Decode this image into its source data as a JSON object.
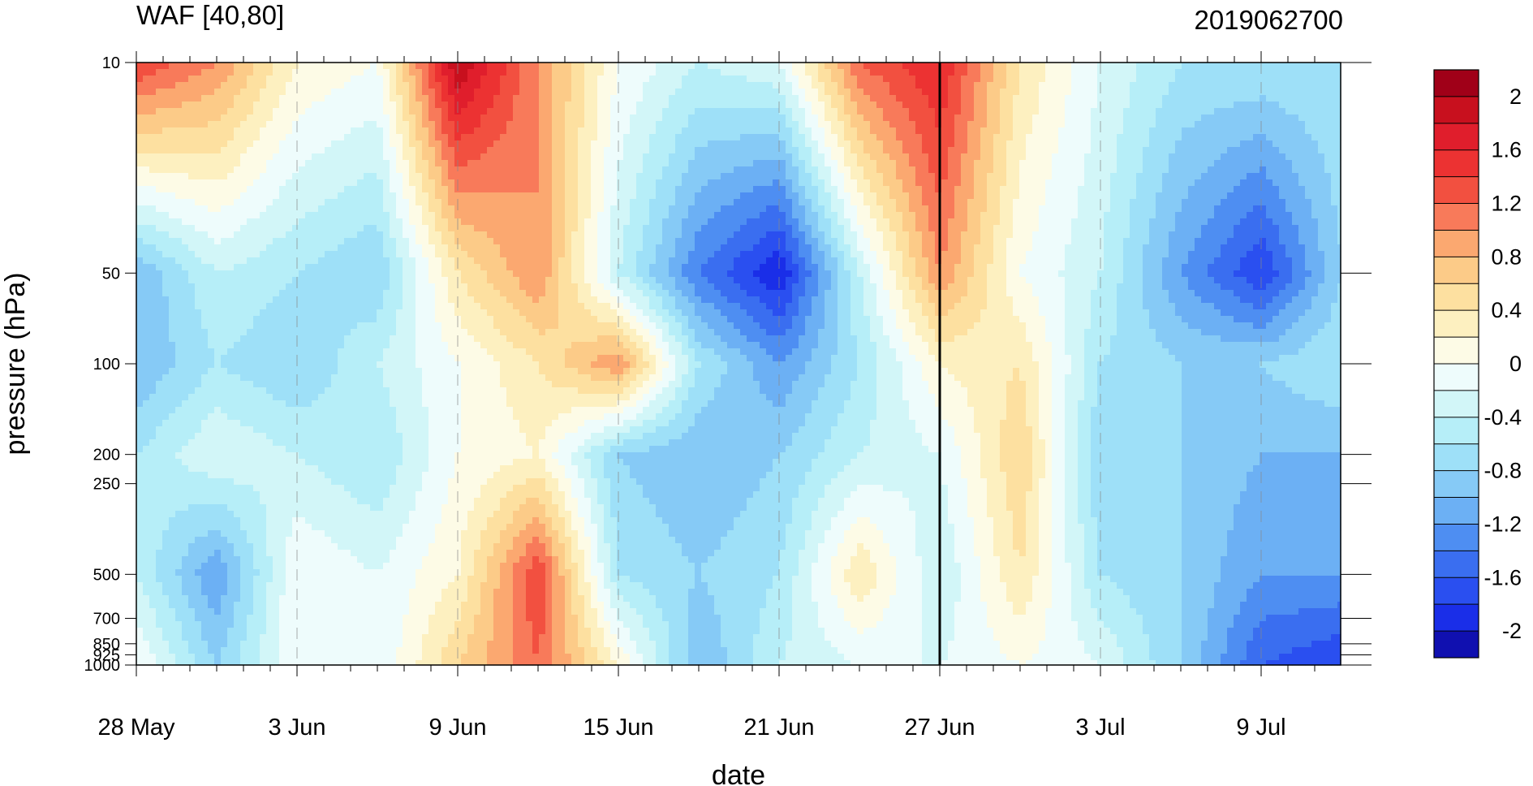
{
  "chart_data": {
    "type": "heatmap",
    "subtype": "filled-contour time-pressure cross section",
    "title": "WAF [40,80]",
    "right_title": "2019062700",
    "xlabel": "date",
    "ylabel": "pressure (hPa)",
    "x_ticks": [
      {
        "day": 0,
        "label": "28 May"
      },
      {
        "day": 6,
        "label": "3 Jun"
      },
      {
        "day": 12,
        "label": "9 Jun"
      },
      {
        "day": 18,
        "label": "15 Jun"
      },
      {
        "day": 24,
        "label": "21 Jun"
      },
      {
        "day": 30,
        "label": "27 Jun"
      },
      {
        "day": 36,
        "label": "3 Jul"
      },
      {
        "day": 42,
        "label": "9 Jul"
      }
    ],
    "x_range_days": [
      0,
      45
    ],
    "highlight_day": 30,
    "y_scale": "log",
    "y_range": [
      1000,
      10
    ],
    "y_ticks": [
      {
        "p": 10,
        "label": "10"
      },
      {
        "p": 50,
        "label": "50"
      },
      {
        "p": 100,
        "label": "100"
      },
      {
        "p": 200,
        "label": "200"
      },
      {
        "p": 250,
        "label": "250"
      },
      {
        "p": 500,
        "label": "500"
      },
      {
        "p": 700,
        "label": "700"
      },
      {
        "p": 850,
        "label": "850"
      },
      {
        "p": 925,
        "label": "925"
      },
      {
        "p": 1000,
        "label": "1000"
      }
    ],
    "levels": [
      -2.2,
      -2.0,
      -1.8,
      -1.6,
      -1.4,
      -1.2,
      -1.0,
      -0.8,
      -0.6,
      -0.4,
      -0.2,
      0,
      0.2,
      0.4,
      0.6,
      0.8,
      1.0,
      1.2,
      1.4,
      1.6,
      1.8,
      2.0,
      2.2
    ],
    "colorbar_labels": [
      {
        "v": 2,
        "label": "2"
      },
      {
        "v": 1.6,
        "label": "1.6"
      },
      {
        "v": 1.2,
        "label": "1.2"
      },
      {
        "v": 0.8,
        "label": "0.8"
      },
      {
        "v": 0.4,
        "label": "0.4"
      },
      {
        "v": 0,
        "label": "0"
      },
      {
        "v": -0.4,
        "label": "-0.4"
      },
      {
        "v": -0.8,
        "label": "-0.8"
      },
      {
        "v": -1.2,
        "label": "-1.2"
      },
      {
        "v": -1.6,
        "label": "-1.6"
      },
      {
        "v": -2,
        "label": "-2"
      }
    ],
    "colors": [
      "#1010b0",
      "#1a2ee8",
      "#2a4ff0",
      "#3a6ef0",
      "#4e8ef2",
      "#6cb0f4",
      "#86caf6",
      "#9ee0f8",
      "#b6eef8",
      "#d2f6f8",
      "#eefcfc",
      "#fdfbe6",
      "#fdf0c0",
      "#fde0a0",
      "#fccb88",
      "#fba870",
      "#f87a5a",
      "#f25040",
      "#ec3232",
      "#e01e2c",
      "#c8101e",
      "#a00018"
    ],
    "grid_days": [
      0,
      3,
      6,
      9,
      12,
      15,
      18,
      21,
      24,
      27,
      30,
      33,
      36,
      39,
      42,
      45
    ],
    "grid_pressures": [
      10,
      50,
      100,
      200,
      500,
      1000
    ],
    "values": [
      [
        1.4,
        1.0,
        0.2,
        0.0,
        2.0,
        1.0,
        0.0,
        -0.4,
        -0.2,
        1.2,
        1.6,
        0.4,
        -0.2,
        -0.6,
        -0.6,
        -0.6
      ],
      [
        -1.0,
        -0.4,
        -0.6,
        -0.8,
        0.4,
        1.0,
        -0.4,
        -1.4,
        -2.0,
        -0.4,
        1.0,
        0.0,
        -0.4,
        -1.2,
        -1.8,
        -0.8
      ],
      [
        -1.0,
        -0.6,
        -0.8,
        -0.4,
        0.0,
        0.4,
        1.0,
        -0.6,
        -1.2,
        -0.6,
        0.2,
        0.4,
        -0.6,
        -0.8,
        -0.8,
        -0.6
      ],
      [
        -0.6,
        -0.2,
        -0.4,
        -0.6,
        0.0,
        0.2,
        -0.8,
        -1.0,
        -0.8,
        -0.4,
        -0.2,
        0.6,
        -0.8,
        -0.8,
        -1.0,
        -1.0
      ],
      [
        -0.4,
        -1.2,
        0.0,
        -0.2,
        0.2,
        1.4,
        -0.6,
        -0.8,
        -0.6,
        0.4,
        -0.4,
        0.4,
        -0.6,
        -0.8,
        -1.2,
        -1.2
      ],
      [
        0.0,
        -0.8,
        0.0,
        -0.2,
        0.6,
        1.2,
        0.2,
        -1.0,
        -0.4,
        -0.2,
        -0.2,
        0.0,
        -0.2,
        -0.8,
        -1.6,
        -1.8
      ]
    ]
  }
}
